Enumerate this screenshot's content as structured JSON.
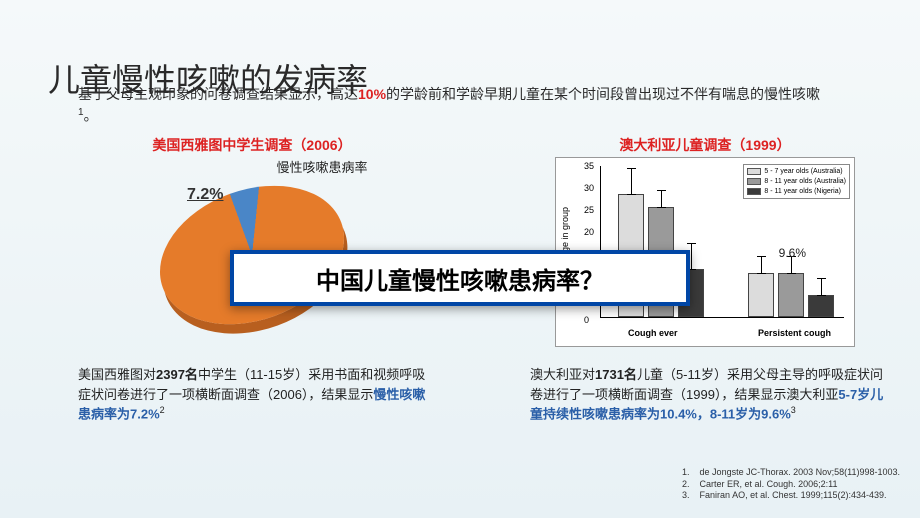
{
  "title": "儿童慢性咳嗽的发病率",
  "intro": {
    "pre": "基于父母主观印象的问卷调查结果显示，高达",
    "highlight": "10%",
    "post": "的学龄前和学龄早期儿童在某个时间段曾出现过不伴有喘息的慢性咳嗽",
    "sup": "1",
    "tail": "。"
  },
  "left": {
    "study_title": "美国西雅图中学生调查（2006）",
    "chart_label": "慢性咳嗽患病率",
    "pie": {
      "type": "pie",
      "values": [
        7.2,
        92.8
      ],
      "colors": [
        "#4a86c7",
        "#e57b2a"
      ],
      "side_color": "#b85f1f",
      "rotation_deg": -20,
      "pct_label": "7.2%"
    },
    "caption": {
      "p1a": "美国西雅图对",
      "bold1": "2397名",
      "p1b": "中学生（11-15岁）采用书面和视频呼吸症状问卷进行了一项横断面调查（2006），结果显示",
      "blue": "慢性咳嗽患病率为7.2%",
      "sup": "2"
    }
  },
  "right": {
    "study_title": "澳大利亚儿童调查（1999）",
    "chart": {
      "type": "bar",
      "y_label": "Percentage in group",
      "y_ticks": [
        0,
        5,
        10,
        15,
        20,
        25,
        30,
        35
      ],
      "ylim": [
        0,
        35
      ],
      "categories": [
        "Cough ever",
        "Persistent cough"
      ],
      "series": [
        {
          "label": "5 - 7 year olds (Australia)",
          "color": "#dcdcdc",
          "values": [
            28,
            10
          ],
          "err": [
            3,
            2
          ]
        },
        {
          "label": "8 - 11 year olds (Australia)",
          "color": "#9a9a9a",
          "values": [
            25,
            10
          ],
          "err": [
            2,
            2
          ]
        },
        {
          "label": "8 - 11 year olds (Nigeria)",
          "color": "#3a3a3a",
          "values": [
            11,
            5
          ],
          "err": [
            3,
            2
          ]
        }
      ],
      "annotation": "9.6%",
      "background": "#ffffff",
      "axis_color": "#000000"
    },
    "caption": {
      "p1a": "澳大利亚对",
      "bold1": "1731名",
      "p1b": "儿童（5-11岁）采用父母主导的呼吸症状问卷进行了一项横断面调查（1999），结果显示澳大利亚",
      "blue": "5-7岁儿童持续性咳嗽患病率为10.4%，8-11岁为9.6%",
      "sup": "3"
    }
  },
  "overlay": "中国儿童慢性咳嗽患病率？",
  "refs": [
    "de Jongste JC-Thorax. 2003 Nov;58(11)998-1003.",
    "Carter ER, et al. Cough. 2006;2:11",
    "Faniran AO, et al. Chest. 1999;115(2):434-439."
  ]
}
